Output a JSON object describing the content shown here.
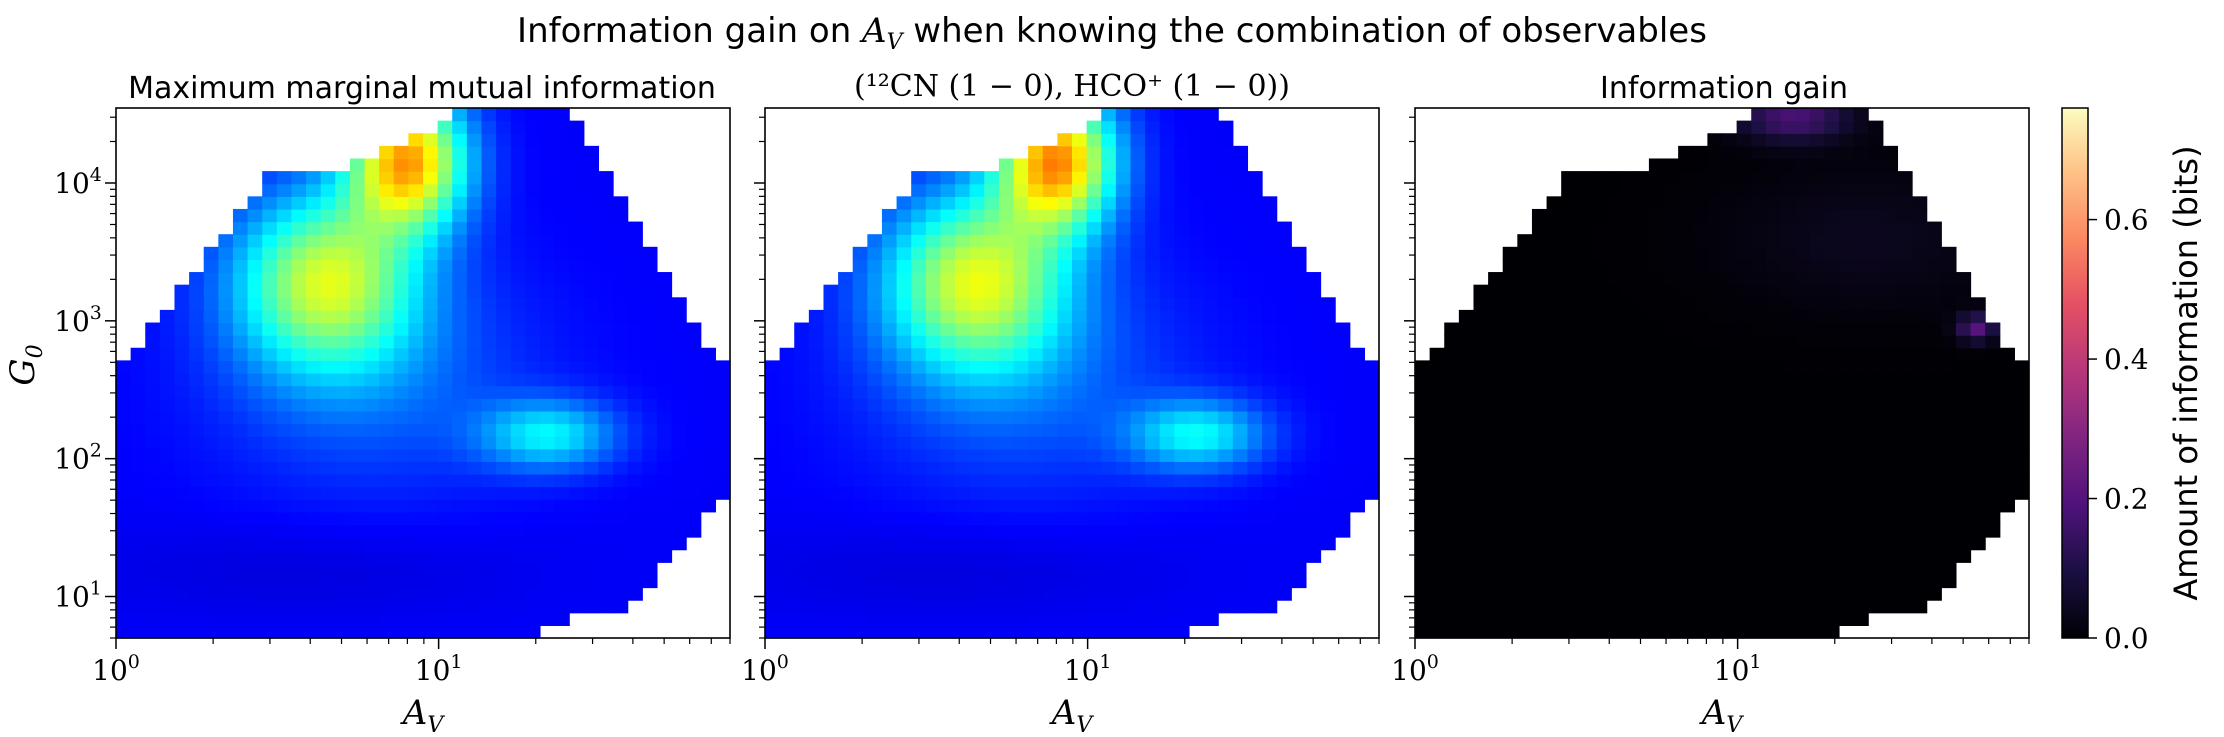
{
  "figure": {
    "suptitle_prefix": "Information gain on ",
    "suptitle_var": "A",
    "suptitle_var_sub": "V",
    "suptitle_suffix": " when knowing the combination of observables",
    "colorbar_label": "Amount of information (bits)"
  },
  "panels": [
    {
      "id": "left",
      "title": "Maximum marginal mutual information",
      "colormap": "jet-like",
      "xlabel": "A",
      "xlabel_sub": "V",
      "ylabel": "G",
      "ylabel_sub": "0",
      "show_ylabel": true
    },
    {
      "id": "middle",
      "title": "",
      "title_math": "(¹²CN (1 − 0), HCO⁺ (1 − 0))",
      "colormap": "jet-like",
      "xlabel": "A",
      "xlabel_sub": "V",
      "show_ylabel": false
    },
    {
      "id": "right",
      "title": "Information gain",
      "colormap": "magma",
      "xlabel": "A",
      "xlabel_sub": "V",
      "show_ylabel": false
    }
  ],
  "axes": {
    "x_ticks": [
      {
        "value": 1,
        "base": "10",
        "exp": "0"
      },
      {
        "value": 10,
        "base": "10",
        "exp": "1"
      }
    ],
    "y_ticks": [
      {
        "value": 10,
        "base": "10",
        "exp": "1"
      },
      {
        "value": 100,
        "base": "10",
        "exp": "2"
      },
      {
        "value": 1000,
        "base": "10",
        "exp": "3"
      },
      {
        "value": 10000,
        "base": "10",
        "exp": "4"
      }
    ],
    "xlim": [
      1,
      80
    ],
    "ylim": [
      5,
      35000
    ],
    "xscale": "log",
    "yscale": "log"
  },
  "colorbar": {
    "ticks": [
      {
        "value": 0.0,
        "label": "0.0"
      },
      {
        "value": 0.2,
        "label": "0.2"
      },
      {
        "value": 0.4,
        "label": "0.4"
      },
      {
        "value": 0.6,
        "label": "0.6"
      }
    ],
    "range": [
      0.0,
      0.76
    ],
    "colormap": "magma"
  },
  "chart_data": [
    {
      "type": "heatmap",
      "title": "Maximum marginal mutual information",
      "xlabel": "A_V",
      "ylabel": "G_0",
      "xlim": [
        1,
        80
      ],
      "ylim": [
        5,
        35000
      ],
      "xscale": "log",
      "yscale": "log",
      "peak": {
        "A_V": 8,
        "G_0": 15000,
        "value": 0.7
      },
      "secondary_peak": {
        "A_V": 4.5,
        "G_0": 2000,
        "value": 0.55
      },
      "tertiary_peak": {
        "A_V": 22,
        "G_0": 150,
        "value": 0.35
      },
      "background_value": 0.12
    },
    {
      "type": "heatmap",
      "title": "(12CN (1-0), HCO+ (1-0))",
      "xlabel": "A_V",
      "xlim": [
        1,
        80
      ],
      "ylim": [
        5,
        35000
      ],
      "xscale": "log",
      "yscale": "log",
      "peak": {
        "A_V": 8,
        "G_0": 15000,
        "value": 0.72
      },
      "secondary_peak": {
        "A_V": 4.5,
        "G_0": 2000,
        "value": 0.56
      },
      "tertiary_peak": {
        "A_V": 22,
        "G_0": 150,
        "value": 0.36
      },
      "background_value": 0.12
    },
    {
      "type": "heatmap",
      "title": "Information gain",
      "xlabel": "A_V",
      "xlim": [
        1,
        80
      ],
      "ylim": [
        5,
        35000
      ],
      "xscale": "log",
      "yscale": "log",
      "peak": {
        "A_V": 15,
        "G_0": 30000,
        "value": 0.18
      },
      "secondary_peak": {
        "A_V": 55,
        "G_0": 900,
        "value": 0.2
      },
      "background_value": 0.0
    }
  ]
}
